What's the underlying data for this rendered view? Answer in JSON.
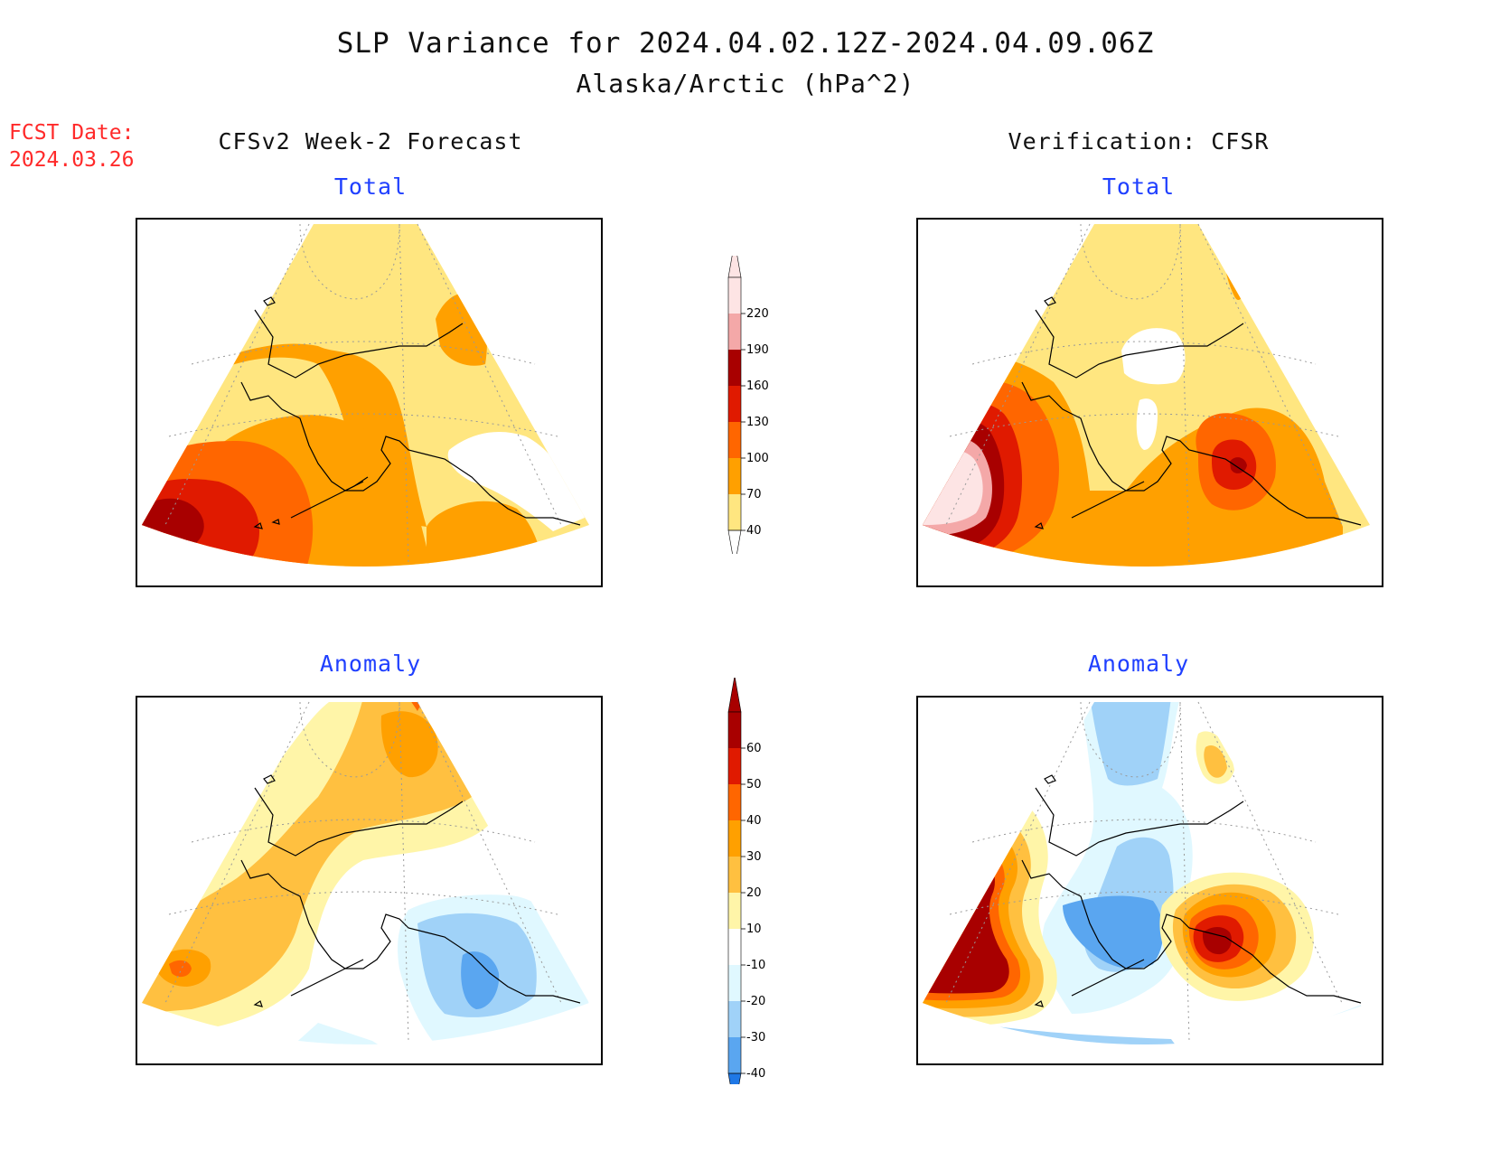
{
  "header": {
    "title": "SLP Variance for 2024.04.02.12Z-2024.04.09.06Z",
    "subtitle": "Alaska/Arctic (hPa^2)",
    "fcst_label": "FCST Date:",
    "fcst_date": "2024.03.26"
  },
  "columns": {
    "left": "CFSv2 Week-2 Forecast",
    "right": "Verification: CFSR"
  },
  "panels": {
    "total_label": "Total",
    "anomaly_label": "Anomaly"
  },
  "colorbars": {
    "total": {
      "levels": [
        "220",
        "190",
        "160",
        "130",
        "100",
        "70",
        "40"
      ],
      "colors": [
        "#fde4e4",
        "#f4a8a8",
        "#a80000",
        "#e01a00",
        "#ff6600",
        "#ffa000",
        "#ffe680"
      ]
    },
    "anomaly": {
      "levels": [
        "60",
        "50",
        "40",
        "30",
        "20",
        "10",
        "-10",
        "-20",
        "-30",
        "-40"
      ],
      "colors": [
        "#a80000",
        "#e01a00",
        "#ff6600",
        "#ffa000",
        "#ffc040",
        "#fff5a8",
        "#ffffff",
        "#e0f8ff",
        "#a0d2f8",
        "#5aa6f0",
        "#1f78e6"
      ]
    }
  },
  "colors": {
    "title_text": "#111111",
    "fcst_text": "#ff2a2a",
    "panel_label": "#2040ff"
  }
}
